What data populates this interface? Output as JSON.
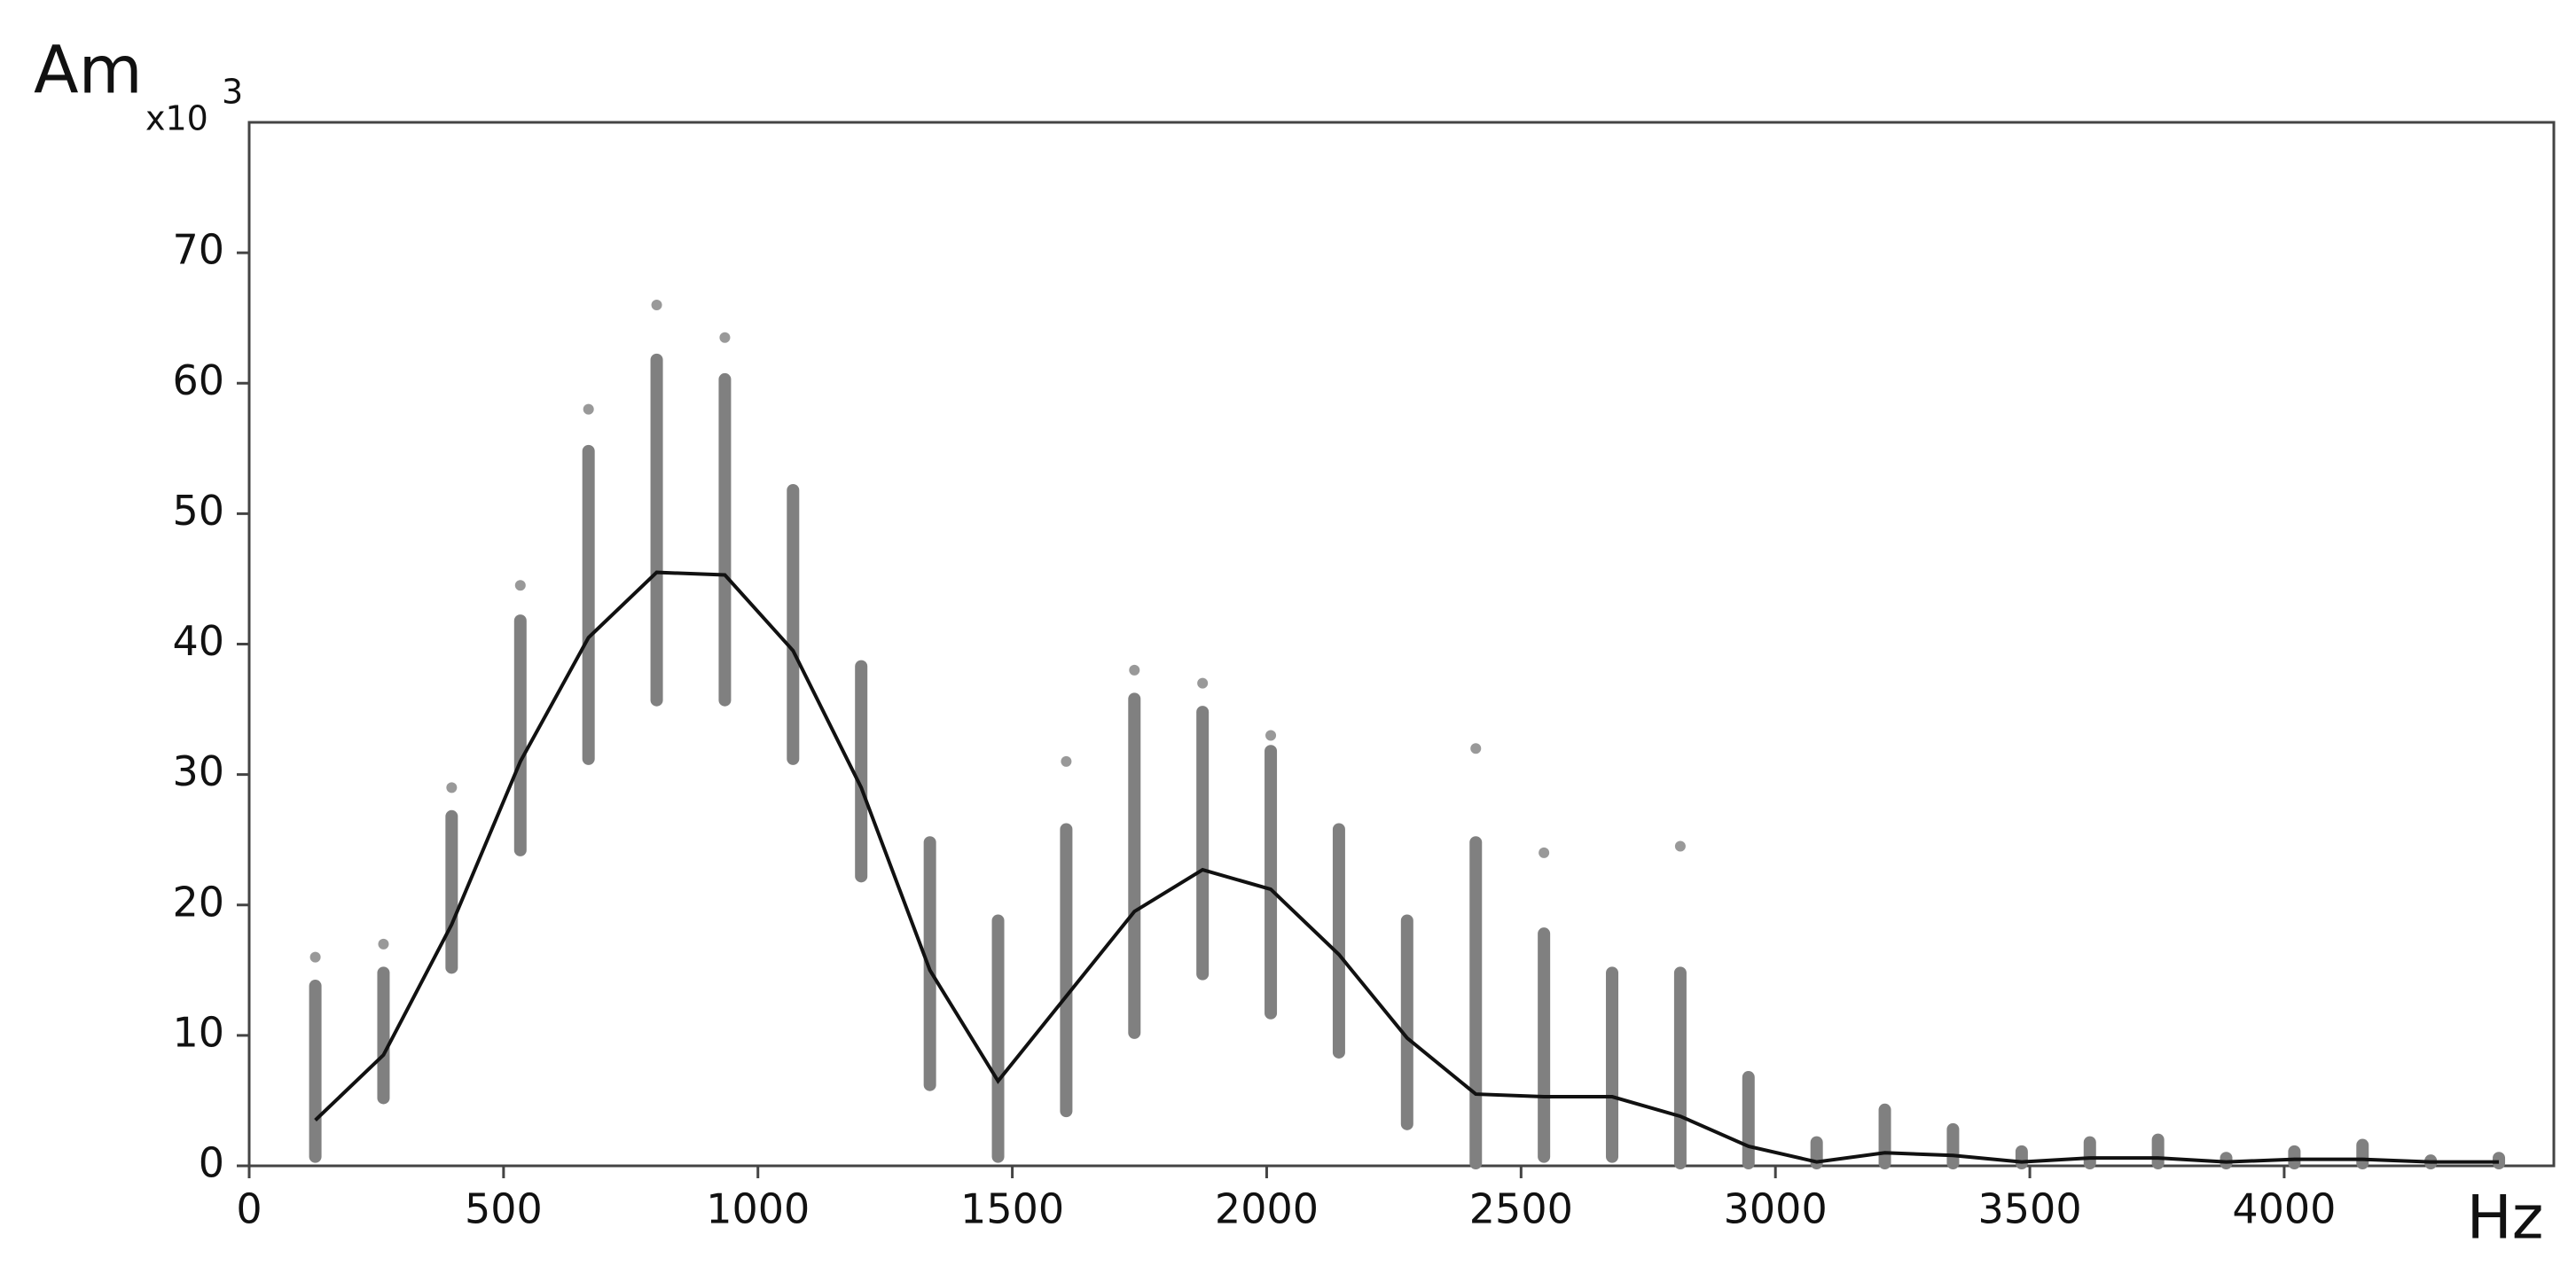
{
  "chart_data": {
    "type": "line",
    "y_label": "Am",
    "y_unit": {
      "base": "x10",
      "exponent": "3"
    },
    "x_label": "Hz",
    "x": [
      130,
      264,
      398,
      533,
      667,
      801,
      935,
      1069,
      1203,
      1338,
      1472,
      1606,
      1740,
      1874,
      2008,
      2142,
      2276,
      2411,
      2545,
      2679,
      2813,
      2947,
      3081,
      3215,
      3349,
      3484,
      3618,
      3752,
      3886,
      4020,
      4154,
      4288,
      4422
    ],
    "series": [
      {
        "color": "#111111",
        "values": [
          3.5,
          8.5,
          18.5,
          31,
          40.5,
          45.5,
          45.3,
          39.5,
          29,
          15,
          6.5,
          13,
          19.5,
          22.7,
          21.2,
          16.2,
          9.8,
          5.5,
          5.3,
          5.3,
          3.8,
          1.5,
          0.3,
          1,
          0.8,
          0.3,
          0.6,
          0.6,
          0.3,
          0.5,
          0.5,
          0.3,
          0.3
        ]
      }
    ],
    "ranges": {
      "color": "#808080",
      "low": [
        0.5,
        5,
        15,
        24,
        31,
        35.5,
        35.5,
        31,
        22,
        6,
        0.5,
        4,
        10,
        14.5,
        11.5,
        8.5,
        3,
        0,
        0.5,
        0.5,
        0,
        0,
        0,
        0,
        0,
        0,
        0,
        0,
        0,
        0,
        0,
        0,
        0
      ],
      "high": [
        14,
        15,
        27,
        42,
        55,
        62,
        60.5,
        52,
        38.5,
        25,
        19,
        26,
        36,
        35,
        32,
        26,
        19,
        25,
        18,
        15,
        15,
        7,
        2,
        4.5,
        3,
        1.3,
        2,
        2.2,
        0.8,
        1.3,
        1.8,
        0.6,
        0.8
      ],
      "peak": [
        16,
        17,
        29,
        44.5,
        58,
        66,
        63.5,
        null,
        null,
        null,
        null,
        31,
        38,
        37,
        33,
        null,
        null,
        32,
        24,
        null,
        24.5,
        null,
        null,
        null,
        null,
        null,
        null,
        null,
        null,
        null,
        null,
        null,
        null
      ]
    },
    "xlim": [
      0,
      4530
    ],
    "ylim": [
      0,
      80
    ],
    "xticks": [
      0,
      500,
      1000,
      1500,
      2000,
      2500,
      3000,
      3500,
      4000
    ],
    "yticks": [
      0,
      10,
      20,
      30,
      40,
      50,
      60,
      70
    ]
  }
}
